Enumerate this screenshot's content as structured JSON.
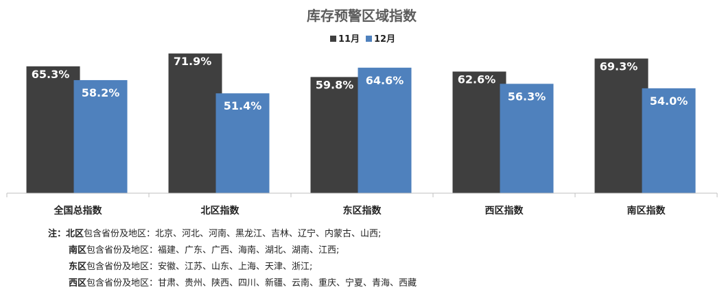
{
  "chart_data": {
    "type": "bar",
    "title": "库存预警区域指数",
    "categories": [
      "全国总指数",
      "北区指数",
      "东区指数",
      "西区指数",
      "南区指数"
    ],
    "series": [
      {
        "name": "11月",
        "values": [
          65.3,
          71.9,
          59.8,
          62.6,
          69.3
        ],
        "labels": [
          "65.3%",
          "71.9%",
          "59.8%",
          "62.6%",
          "69.3%"
        ],
        "color": "#3f3f3f"
      },
      {
        "name": "12月",
        "values": [
          58.2,
          51.4,
          64.6,
          56.3,
          54.0
        ],
        "labels": [
          "58.2%",
          "51.4%",
          "64.6%",
          "56.3%",
          "54.0%"
        ],
        "color": "#4f81bd"
      }
    ],
    "ylim": [
      0,
      80
    ],
    "unit": "%",
    "legend_position": "top-center",
    "grid": false
  },
  "notes": {
    "prefix": "注：",
    "suffix": "包含省份及地区：",
    "lines": [
      {
        "region": "北区",
        "provinces": "北京、河北、河南、黑龙江、吉林、辽宁、内蒙古、山西;"
      },
      {
        "region": "南区",
        "provinces": "福建、广东、广西、海南、湖北、湖南、江西;"
      },
      {
        "region": "东区",
        "provinces": "安徽、江苏、山东、上海、天津、浙江;"
      },
      {
        "region": "西区",
        "provinces": "甘肃、贵州、陕西、四川、新疆、云南、重庆、宁夏、青海、西藏"
      }
    ]
  }
}
